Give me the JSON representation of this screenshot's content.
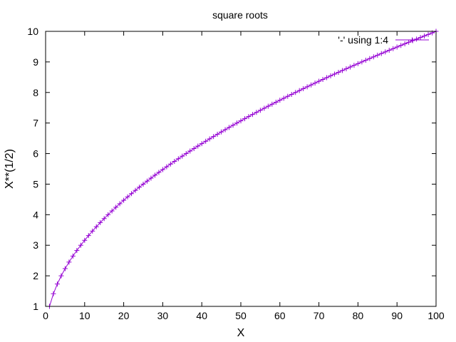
{
  "chart_data": {
    "type": "line",
    "title": "square roots",
    "xlabel": "X",
    "ylabel": "X**(1/2)",
    "xlim": [
      0,
      100
    ],
    "ylim": [
      1,
      10
    ],
    "xticks": [
      0,
      10,
      20,
      30,
      40,
      50,
      60,
      70,
      80,
      90,
      100
    ],
    "yticks": [
      1,
      2,
      3,
      4,
      5,
      6,
      7,
      8,
      9,
      10
    ],
    "grid": false,
    "legend_position": "top-right",
    "colors": {
      "series": "#9400d3",
      "axis": "#000000",
      "background": "#ffffff"
    },
    "series": [
      {
        "name": "'-' using 1:4",
        "marker": "plus",
        "line": true,
        "x": [
          1,
          2,
          3,
          4,
          5,
          6,
          7,
          8,
          9,
          10,
          11,
          12,
          13,
          14,
          15,
          16,
          17,
          18,
          19,
          20,
          21,
          22,
          23,
          24,
          25,
          26,
          27,
          28,
          29,
          30,
          31,
          32,
          33,
          34,
          35,
          36,
          37,
          38,
          39,
          40,
          41,
          42,
          43,
          44,
          45,
          46,
          47,
          48,
          49,
          50,
          51,
          52,
          53,
          54,
          55,
          56,
          57,
          58,
          59,
          60,
          61,
          62,
          63,
          64,
          65,
          66,
          67,
          68,
          69,
          70,
          71,
          72,
          73,
          74,
          75,
          76,
          77,
          78,
          79,
          80,
          81,
          82,
          83,
          84,
          85,
          86,
          87,
          88,
          89,
          90,
          91,
          92,
          93,
          94,
          95,
          96,
          97,
          98,
          99,
          100
        ],
        "y": [
          1.0,
          1.414,
          1.732,
          2.0,
          2.236,
          2.449,
          2.646,
          2.828,
          3.0,
          3.162,
          3.317,
          3.464,
          3.606,
          3.742,
          3.873,
          4.0,
          4.123,
          4.243,
          4.359,
          4.472,
          4.583,
          4.69,
          4.796,
          4.899,
          5.0,
          5.099,
          5.196,
          5.292,
          5.385,
          5.477,
          5.568,
          5.657,
          5.745,
          5.831,
          5.916,
          6.0,
          6.083,
          6.164,
          6.245,
          6.325,
          6.403,
          6.481,
          6.557,
          6.633,
          6.708,
          6.782,
          6.856,
          6.928,
          7.0,
          7.071,
          7.141,
          7.211,
          7.28,
          7.348,
          7.416,
          7.483,
          7.55,
          7.616,
          7.681,
          7.746,
          7.81,
          7.874,
          7.937,
          8.0,
          8.062,
          8.124,
          8.185,
          8.246,
          8.307,
          8.367,
          8.426,
          8.485,
          8.544,
          8.602,
          8.66,
          8.718,
          8.775,
          8.832,
          8.888,
          8.944,
          9.0,
          9.055,
          9.11,
          9.165,
          9.22,
          9.274,
          9.327,
          9.381,
          9.434,
          9.487,
          9.539,
          9.592,
          9.644,
          9.695,
          9.747,
          9.798,
          9.849,
          9.899,
          9.95,
          10.0
        ]
      }
    ]
  }
}
